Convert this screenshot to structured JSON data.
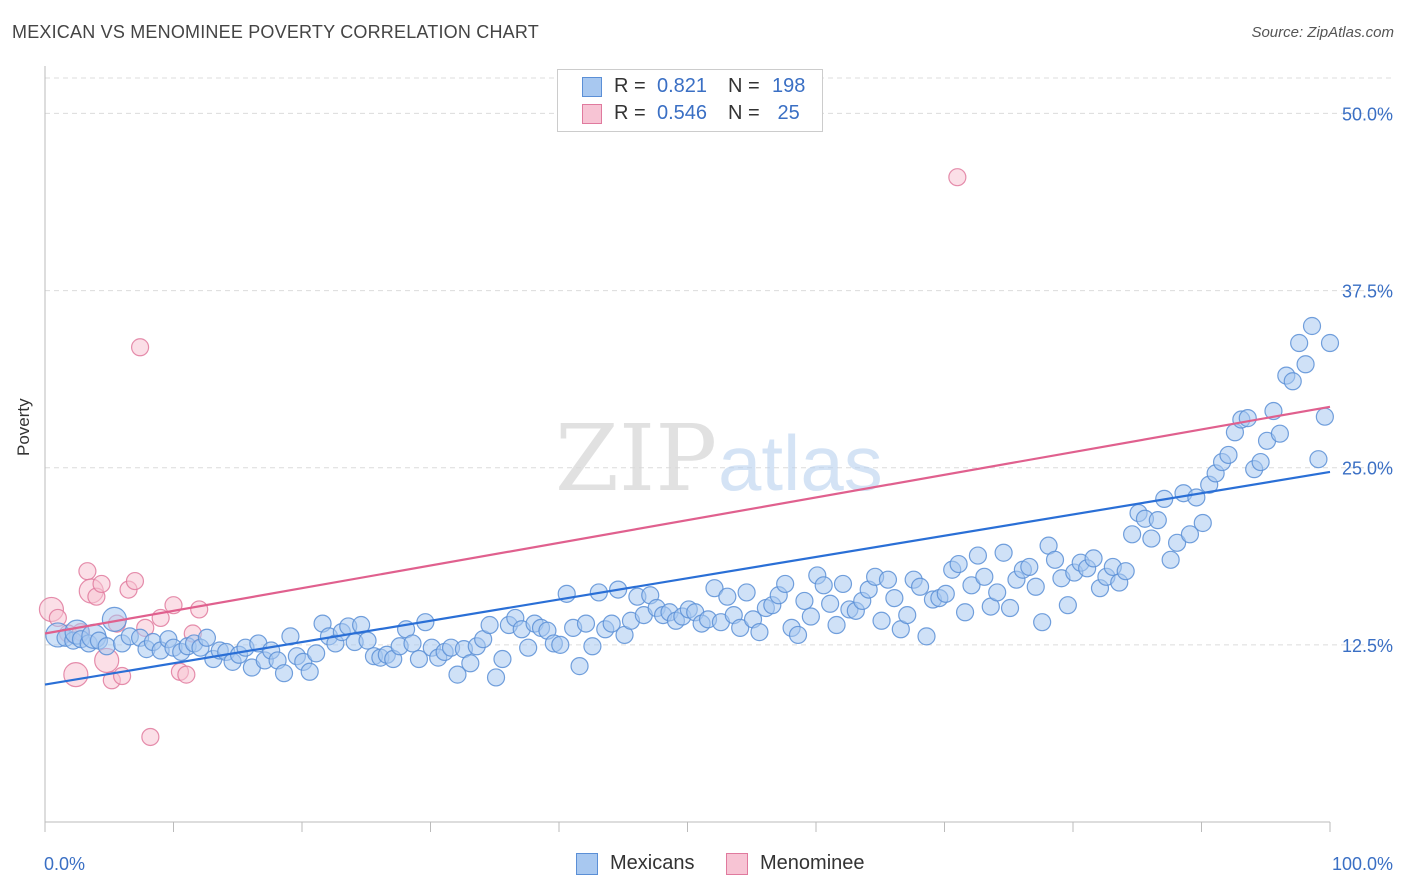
{
  "title": "MEXICAN VS MENOMINEE POVERTY CORRELATION CHART",
  "source": "Source: ZipAtlas.com",
  "watermark": {
    "zip": "ZIP",
    "atlas": "atlas"
  },
  "legend": {
    "rows": [
      {
        "r_label": "R =",
        "r_value": "0.821",
        "n_label": "N =",
        "n_value": "198",
        "color": "#a8c8f0",
        "border": "#5b8fd6"
      },
      {
        "r_label": "R =",
        "r_value": "0.546",
        "n_label": "N =",
        "n_value": " 25",
        "color": "#f7c4d4",
        "border": "#e07a9e"
      }
    ]
  },
  "bottom_legend": [
    {
      "label": "Mexicans",
      "color": "#a8c8f0",
      "border": "#5b8fd6"
    },
    {
      "label": "Menominee",
      "color": "#f7c4d4",
      "border": "#e07a9e"
    }
  ],
  "chart_data": {
    "type": "scatter",
    "title": "MEXICAN VS MENOMINEE POVERTY CORRELATION CHART",
    "xlabel": "",
    "ylabel": "Poverty",
    "xlim": [
      0,
      100
    ],
    "ylim": [
      0,
      52.5
    ],
    "x_tick_labels": [
      "0.0%",
      "100.0%"
    ],
    "y_ticks": [
      12.5,
      25.0,
      37.5,
      50.0
    ],
    "y_tick_labels": [
      "12.5%",
      "25.0%",
      "37.5%",
      "50.0%"
    ],
    "grid": true,
    "legend_position": "top-center",
    "colors": {
      "mexicans": "#5b8fd6",
      "mexicans_fill": "#a8c8f0",
      "mexicans_line": "#2a6fd6",
      "menominee": "#e07a9e",
      "menominee_fill": "#f7c4d4",
      "menominee_line": "#e0608e",
      "tick_label": "#3a6fc4"
    },
    "series": [
      {
        "name": "Mexicans",
        "trend": {
          "x": [
            0,
            100
          ],
          "y": [
            9.7,
            24.7
          ]
        },
        "points": [
          [
            1.0,
            13.2
          ],
          [
            1.6,
            13.0
          ],
          [
            2.2,
            12.8
          ],
          [
            2.5,
            13.4
          ],
          [
            2.8,
            12.9
          ],
          [
            3.4,
            12.6
          ],
          [
            3.8,
            13.1
          ],
          [
            4.2,
            12.8
          ],
          [
            4.8,
            12.4
          ],
          [
            5.4,
            14.3
          ],
          [
            6.0,
            12.6
          ],
          [
            6.6,
            13.1
          ],
          [
            7.4,
            13.0
          ],
          [
            7.9,
            12.2
          ],
          [
            8.4,
            12.7
          ],
          [
            9.0,
            12.1
          ],
          [
            9.6,
            12.9
          ],
          [
            10.0,
            12.3
          ],
          [
            10.6,
            12.0
          ],
          [
            11.1,
            12.4
          ],
          [
            11.6,
            12.6
          ],
          [
            12.1,
            12.3
          ],
          [
            12.6,
            13.0
          ],
          [
            13.1,
            11.5
          ],
          [
            13.6,
            12.1
          ],
          [
            14.1,
            12.0
          ],
          [
            14.6,
            11.3
          ],
          [
            15.1,
            11.8
          ],
          [
            15.6,
            12.3
          ],
          [
            16.1,
            10.9
          ],
          [
            16.6,
            12.6
          ],
          [
            17.1,
            11.4
          ],
          [
            17.6,
            12.1
          ],
          [
            18.1,
            11.4
          ],
          [
            18.6,
            10.5
          ],
          [
            19.1,
            13.1
          ],
          [
            19.6,
            11.7
          ],
          [
            20.1,
            11.3
          ],
          [
            20.6,
            10.6
          ],
          [
            21.1,
            11.9
          ],
          [
            21.6,
            14.0
          ],
          [
            22.1,
            13.1
          ],
          [
            22.6,
            12.6
          ],
          [
            23.1,
            13.4
          ],
          [
            23.6,
            13.8
          ],
          [
            24.1,
            12.7
          ],
          [
            24.6,
            13.9
          ],
          [
            25.1,
            12.8
          ],
          [
            25.6,
            11.7
          ],
          [
            26.1,
            11.6
          ],
          [
            26.6,
            11.8
          ],
          [
            27.1,
            11.5
          ],
          [
            27.6,
            12.4
          ],
          [
            28.1,
            13.6
          ],
          [
            28.6,
            12.6
          ],
          [
            29.1,
            11.5
          ],
          [
            29.6,
            14.1
          ],
          [
            30.1,
            12.3
          ],
          [
            30.6,
            11.6
          ],
          [
            31.1,
            12.0
          ],
          [
            31.6,
            12.3
          ],
          [
            32.1,
            10.4
          ],
          [
            32.6,
            12.2
          ],
          [
            33.1,
            11.2
          ],
          [
            33.6,
            12.4
          ],
          [
            34.1,
            12.9
          ],
          [
            34.6,
            13.9
          ],
          [
            35.1,
            10.2
          ],
          [
            35.6,
            11.5
          ],
          [
            36.1,
            13.9
          ],
          [
            36.6,
            14.4
          ],
          [
            37.1,
            13.6
          ],
          [
            37.6,
            12.3
          ],
          [
            38.1,
            14.0
          ],
          [
            38.6,
            13.7
          ],
          [
            39.1,
            13.5
          ],
          [
            39.6,
            12.6
          ],
          [
            40.1,
            12.5
          ],
          [
            40.6,
            16.1
          ],
          [
            41.1,
            13.7
          ],
          [
            41.6,
            11.0
          ],
          [
            42.1,
            14.0
          ],
          [
            42.6,
            12.4
          ],
          [
            43.1,
            16.2
          ],
          [
            43.6,
            13.6
          ],
          [
            44.1,
            14.0
          ],
          [
            44.6,
            16.4
          ],
          [
            45.1,
            13.2
          ],
          [
            45.6,
            14.2
          ],
          [
            46.1,
            15.9
          ],
          [
            46.6,
            14.6
          ],
          [
            47.1,
            16.0
          ],
          [
            47.6,
            15.1
          ],
          [
            48.1,
            14.6
          ],
          [
            48.6,
            14.8
          ],
          [
            49.1,
            14.2
          ],
          [
            49.6,
            14.5
          ],
          [
            50.1,
            15.0
          ],
          [
            50.6,
            14.8
          ],
          [
            51.1,
            14.0
          ],
          [
            51.6,
            14.3
          ],
          [
            52.1,
            16.5
          ],
          [
            52.6,
            14.1
          ],
          [
            53.1,
            15.9
          ],
          [
            53.6,
            14.6
          ],
          [
            54.1,
            13.7
          ],
          [
            54.6,
            16.2
          ],
          [
            55.1,
            14.3
          ],
          [
            55.6,
            13.4
          ],
          [
            56.1,
            15.1
          ],
          [
            56.6,
            15.3
          ],
          [
            57.1,
            16.0
          ],
          [
            57.6,
            16.8
          ],
          [
            58.1,
            13.7
          ],
          [
            58.6,
            13.2
          ],
          [
            59.1,
            15.6
          ],
          [
            59.6,
            14.5
          ],
          [
            60.1,
            17.4
          ],
          [
            60.6,
            16.7
          ],
          [
            61.1,
            15.4
          ],
          [
            61.6,
            13.9
          ],
          [
            62.1,
            16.8
          ],
          [
            62.6,
            15.0
          ],
          [
            63.1,
            14.9
          ],
          [
            63.6,
            15.6
          ],
          [
            64.1,
            16.4
          ],
          [
            64.6,
            17.3
          ],
          [
            65.1,
            14.2
          ],
          [
            65.6,
            17.1
          ],
          [
            66.1,
            15.8
          ],
          [
            66.6,
            13.6
          ],
          [
            67.1,
            14.6
          ],
          [
            67.6,
            17.1
          ],
          [
            68.1,
            16.6
          ],
          [
            68.6,
            13.1
          ],
          [
            69.1,
            15.7
          ],
          [
            69.6,
            15.8
          ],
          [
            70.1,
            16.1
          ],
          [
            70.6,
            17.8
          ],
          [
            71.1,
            18.2
          ],
          [
            71.6,
            14.8
          ],
          [
            72.1,
            16.7
          ],
          [
            72.6,
            18.8
          ],
          [
            73.1,
            17.3
          ],
          [
            73.6,
            15.2
          ],
          [
            74.1,
            16.2
          ],
          [
            74.6,
            19.0
          ],
          [
            75.1,
            15.1
          ],
          [
            75.6,
            17.1
          ],
          [
            76.1,
            17.8
          ],
          [
            76.6,
            18.0
          ],
          [
            77.1,
            16.6
          ],
          [
            77.6,
            14.1
          ],
          [
            78.1,
            19.5
          ],
          [
            78.6,
            18.5
          ],
          [
            79.1,
            17.2
          ],
          [
            79.6,
            15.3
          ],
          [
            80.1,
            17.6
          ],
          [
            80.6,
            18.3
          ],
          [
            81.1,
            17.9
          ],
          [
            81.6,
            18.6
          ],
          [
            82.1,
            16.5
          ],
          [
            82.6,
            17.3
          ],
          [
            83.1,
            18.0
          ],
          [
            83.6,
            16.9
          ],
          [
            84.1,
            17.7
          ],
          [
            84.6,
            20.3
          ],
          [
            85.1,
            21.8
          ],
          [
            85.6,
            21.4
          ],
          [
            86.1,
            20.0
          ],
          [
            86.6,
            21.3
          ],
          [
            87.1,
            22.8
          ],
          [
            87.6,
            18.5
          ],
          [
            88.1,
            19.7
          ],
          [
            88.6,
            23.2
          ],
          [
            89.1,
            20.3
          ],
          [
            89.6,
            22.9
          ],
          [
            90.1,
            21.1
          ],
          [
            90.6,
            23.8
          ],
          [
            91.1,
            24.6
          ],
          [
            91.6,
            25.4
          ],
          [
            92.1,
            25.9
          ],
          [
            92.6,
            27.5
          ],
          [
            93.1,
            28.4
          ],
          [
            93.6,
            28.5
          ],
          [
            94.1,
            24.9
          ],
          [
            94.6,
            25.4
          ],
          [
            95.1,
            26.9
          ],
          [
            95.6,
            29.0
          ],
          [
            96.1,
            27.4
          ],
          [
            96.6,
            31.5
          ],
          [
            97.1,
            31.1
          ],
          [
            97.6,
            33.8
          ],
          [
            98.1,
            32.3
          ],
          [
            98.6,
            35.0
          ],
          [
            99.1,
            25.6
          ],
          [
            99.6,
            28.6
          ],
          [
            100.0,
            33.8
          ]
        ]
      },
      {
        "name": "Menominee",
        "trend": {
          "x": [
            0,
            100
          ],
          "y": [
            13.3,
            29.3
          ]
        },
        "points": [
          [
            0.5,
            15.0
          ],
          [
            1.0,
            14.4
          ],
          [
            1.8,
            13.3
          ],
          [
            2.4,
            10.4
          ],
          [
            2.8,
            13.4
          ],
          [
            3.3,
            17.7
          ],
          [
            3.6,
            16.3
          ],
          [
            4.0,
            15.9
          ],
          [
            4.4,
            16.8
          ],
          [
            4.8,
            11.4
          ],
          [
            5.2,
            10.0
          ],
          [
            5.6,
            14.0
          ],
          [
            6.0,
            10.3
          ],
          [
            6.5,
            16.4
          ],
          [
            7.0,
            17.0
          ],
          [
            7.4,
            33.5
          ],
          [
            7.8,
            13.7
          ],
          [
            8.2,
            6.0
          ],
          [
            9.0,
            14.4
          ],
          [
            10.0,
            15.3
          ],
          [
            10.5,
            10.6
          ],
          [
            11.0,
            10.4
          ],
          [
            11.5,
            13.3
          ],
          [
            12.0,
            15.0
          ],
          [
            71.0,
            45.5
          ]
        ]
      }
    ]
  }
}
